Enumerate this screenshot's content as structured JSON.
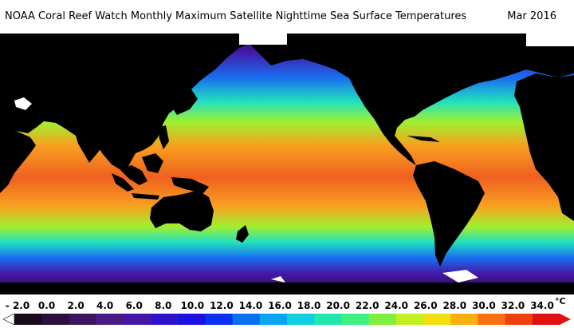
{
  "title": "NOAA Coral Reef Watch Monthly Maximum Satellite Nighttime Sea Surface Temperatures",
  "date": "Mar 2016",
  "legend": {
    "unit": "°C",
    "labels": [
      "- 2.0",
      "0.0",
      "2.0",
      "4.0",
      "6.0",
      "8.0",
      "10.0",
      "12.0",
      "14.0",
      "16.0",
      "18.0",
      "20.0",
      "22.0",
      "24.0",
      "26.0",
      "28.0",
      "30.0",
      "32.0",
      "34.0"
    ],
    "colors": [
      "#1a0a1e",
      "#2b0f3d",
      "#3c1560",
      "#4a1a84",
      "#4417a8",
      "#3212c8",
      "#1a12e0",
      "#0a30f0",
      "#0a70f0",
      "#0aa5f0",
      "#10d0e0",
      "#20e6b0",
      "#40f080",
      "#80f040",
      "#c0f020",
      "#f0e010",
      "#f8b010",
      "#f87010",
      "#f04010",
      "#e01010"
    ]
  },
  "map_colors": {
    "polar": "#2a0840",
    "cold": "#4418a8",
    "cool": "#1a6ef0",
    "mild": "#20e0c0",
    "warm": "#a0f030",
    "hot": "#f8a020",
    "hottest": "#f06020",
    "land": "#000000",
    "ice": "#ffffff"
  }
}
